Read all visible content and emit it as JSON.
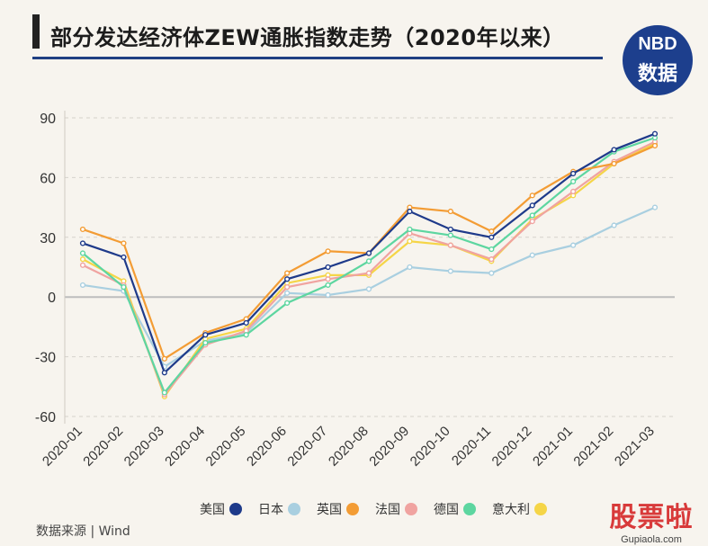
{
  "header": {
    "title": "部分发达经济体ZEW通胀指数走势（2020年以来）"
  },
  "logo": {
    "line1": "NBD",
    "line2": "数据"
  },
  "footer": {
    "source": "数据来源 | Wind"
  },
  "watermark": {
    "big": "股票啦",
    "small": "Gupiaola.com"
  },
  "chart_data": {
    "type": "line",
    "title": "部分发达经济体ZEW通胀指数走势（2020年以来）",
    "categories": [
      "2020-01",
      "2020-02",
      "2020-03",
      "2020-04",
      "2020-05",
      "2020-06",
      "2020-07",
      "2020-08",
      "2020-09",
      "2020-10",
      "2020-11",
      "2020-12",
      "2021-01",
      "2021-02",
      "2021-03"
    ],
    "ylim": [
      -60,
      90
    ],
    "yticks": [
      -60,
      -30,
      0,
      30,
      60,
      90
    ],
    "grid": true,
    "legend_position": "bottom",
    "series": [
      {
        "name": "美国",
        "color": "#1e3a8a",
        "values": [
          27,
          20,
          -38,
          -19,
          -13,
          9,
          15,
          22,
          43,
          34,
          30,
          46,
          62,
          74,
          82
        ]
      },
      {
        "name": "日本",
        "color": "#a9cfe0",
        "values": [
          6,
          3,
          -35,
          -22,
          -18,
          2,
          1,
          4,
          15,
          13,
          12,
          21,
          26,
          36,
          45
        ]
      },
      {
        "name": "英国",
        "color": "#f39c34",
        "values": [
          34,
          27,
          -31,
          -18,
          -11,
          12,
          23,
          22,
          45,
          43,
          33,
          51,
          63,
          67,
          76
        ]
      },
      {
        "name": "法国",
        "color": "#f0a3a0",
        "values": [
          16,
          6,
          -49,
          -24,
          -17,
          5,
          9,
          12,
          32,
          26,
          19,
          38,
          53,
          68,
          78
        ]
      },
      {
        "name": "德国",
        "color": "#5dd6a0",
        "values": [
          22,
          5,
          -48,
          -23,
          -19,
          -3,
          6,
          18,
          34,
          31,
          24,
          41,
          58,
          73,
          80
        ]
      },
      {
        "name": "意大利",
        "color": "#f5d547",
        "values": [
          19,
          8,
          -50,
          -21,
          -16,
          7,
          11,
          11,
          28,
          26,
          18,
          39,
          51,
          67,
          77
        ]
      }
    ]
  }
}
